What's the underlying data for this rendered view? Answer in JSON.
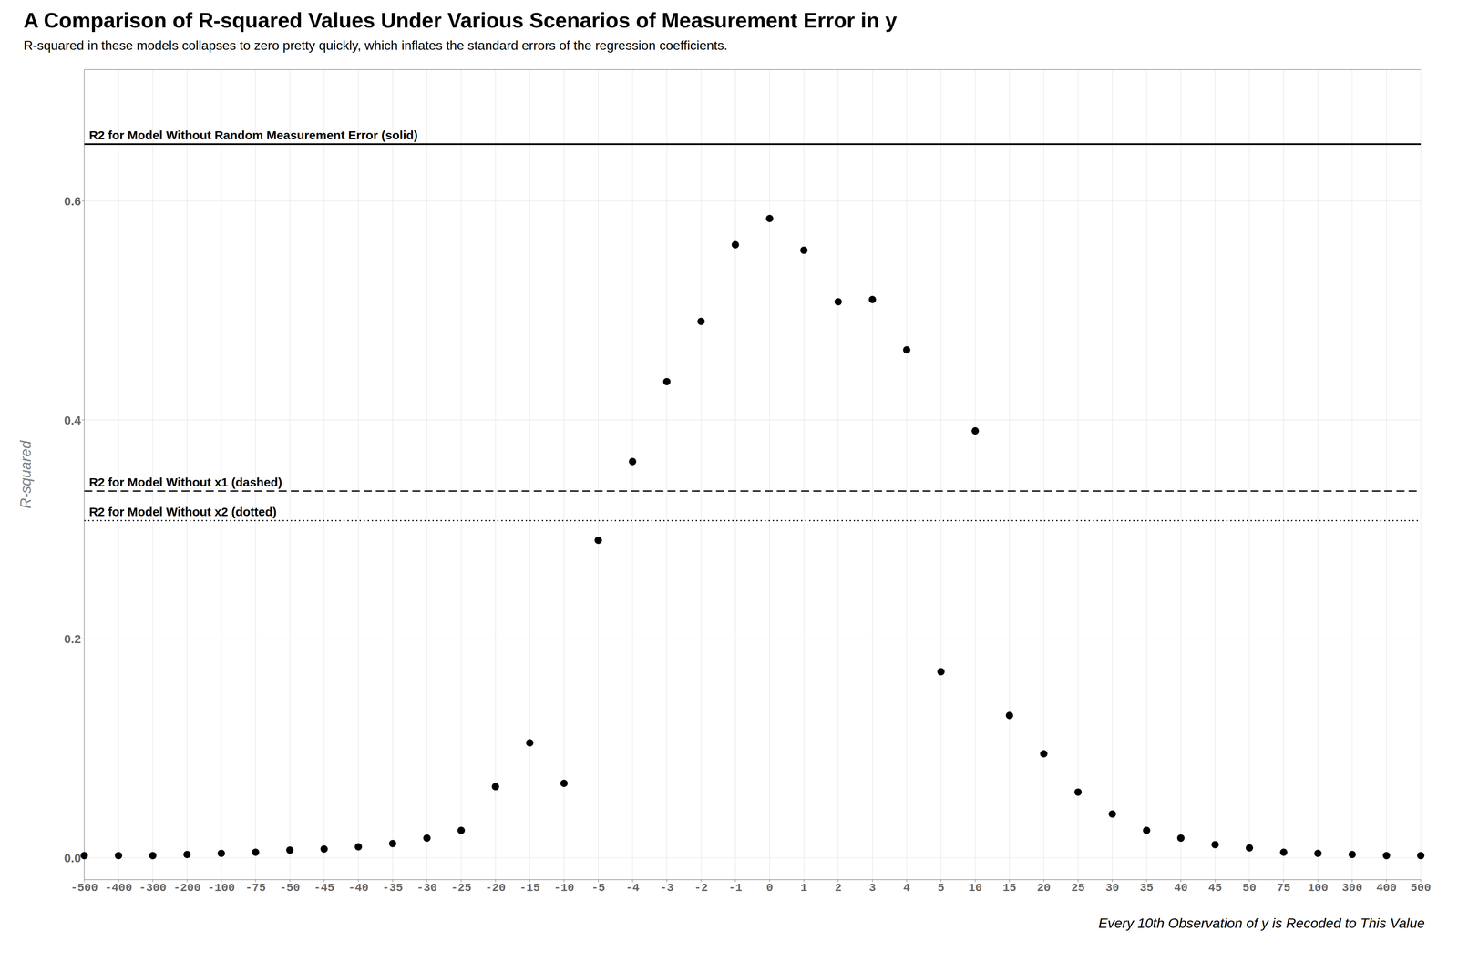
{
  "chart_data": {
    "type": "scatter",
    "title": "A Comparison of R-squared Values Under Various Scenarios of Measurement Error in y",
    "subtitle": "R-squared in these models collapses to zero pretty quickly, which inflates the standard errors of the regression coefficients.",
    "xlabel": "Every 10th Observation of y is Recoded to This Value",
    "ylabel": "R-squared",
    "categories": [
      "-500",
      "-400",
      "-300",
      "-200",
      "-100",
      "-75",
      "-50",
      "-45",
      "-40",
      "-35",
      "-30",
      "-25",
      "-20",
      "-15",
      "-10",
      "-5",
      "-4",
      "-3",
      "-2",
      "-1",
      "0",
      "1",
      "2",
      "3",
      "4",
      "5",
      "10",
      "15",
      "20",
      "25",
      "30",
      "35",
      "40",
      "45",
      "50",
      "75",
      "100",
      "300",
      "400",
      "500"
    ],
    "values": [
      0.002,
      0.002,
      0.002,
      0.003,
      0.004,
      0.005,
      0.007,
      0.008,
      0.01,
      0.013,
      0.018,
      0.025,
      0.065,
      0.105,
      0.068,
      0.29,
      0.362,
      0.435,
      0.49,
      0.56,
      0.584,
      0.555,
      0.508,
      0.51,
      0.464,
      0.17,
      0.39,
      0.13,
      0.095,
      0.06,
      0.04,
      0.025,
      0.018,
      0.012,
      0.009,
      0.005,
      0.004,
      0.003,
      0.002,
      0.002
    ],
    "color": "#000000",
    "marker": "circle",
    "ylim": [
      -0.02,
      0.72
    ],
    "yticks": [
      {
        "value": 0.0,
        "label": "0.0"
      },
      {
        "value": 0.2,
        "label": "0.2"
      },
      {
        "value": 0.4,
        "label": "0.4"
      },
      {
        "value": 0.6,
        "label": "0.6"
      }
    ],
    "grid": true,
    "annotations": [
      {
        "y": 0.652,
        "text": "R2 for Model Without Random Measurement Error (solid)",
        "line_style": "solid",
        "color": "#000000"
      },
      {
        "y": 0.335,
        "text": "R2 for Model Without x1 (dashed)",
        "line_style": "dashed",
        "color": "#000000"
      },
      {
        "y": 0.308,
        "text": "R2 for Model Without x2 (dotted)",
        "line_style": "dotted",
        "color": "#000000"
      }
    ]
  }
}
